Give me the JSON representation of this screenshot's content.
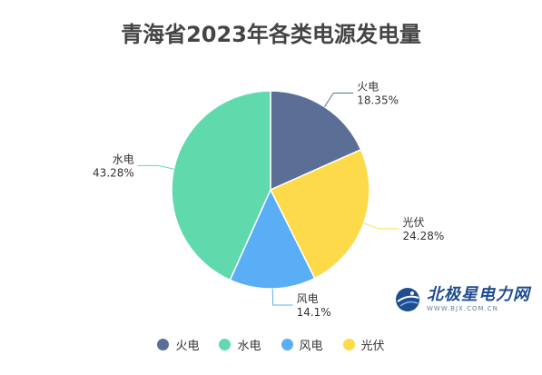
{
  "chart_data": {
    "type": "pie",
    "title": "青海省2023年各类电源发电量",
    "slices": [
      {
        "name": "火电",
        "value": 18.35,
        "label": "18.35%",
        "color": "#5b6e96"
      },
      {
        "name": "光伏",
        "value": 24.28,
        "label": "24.28%",
        "color": "#fdda4a"
      },
      {
        "name": "风电",
        "value": 14.1,
        "label": "14.1%",
        "color": "#5aaef5"
      },
      {
        "name": "水电",
        "value": 43.28,
        "label": "43.28%",
        "color": "#60d9ad"
      }
    ],
    "legend": {
      "placement": "bottom",
      "entries": [
        {
          "name": "火电",
          "color": "#5b6e96"
        },
        {
          "name": "水电",
          "color": "#60d9ad"
        },
        {
          "name": "风电",
          "color": "#5aaef5"
        },
        {
          "name": "光伏",
          "color": "#fdda4a"
        }
      ]
    }
  },
  "watermark": {
    "main": "北极星电力网",
    "sub": "WWW.BJX.COM.CN"
  }
}
